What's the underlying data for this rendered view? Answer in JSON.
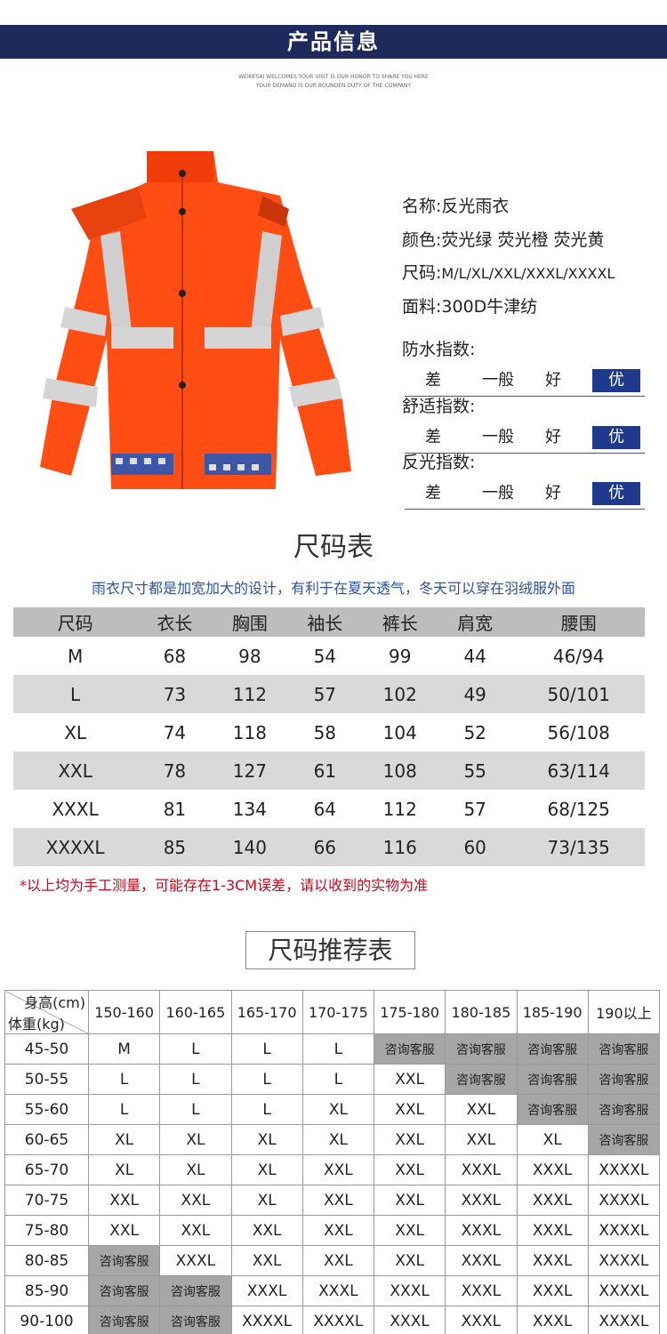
{
  "header": {
    "title": "产品信息",
    "subtitle": [
      "WEIKESAI WELCOMES YOUR VISIT IS OUR HONOR TO SHARE YOU HERE",
      "YOUR DEMAND IS OUR BOUNDEN DUTY OF THE COMPANY"
    ]
  },
  "product": {
    "specs": [
      {
        "label": "名称:",
        "value": "反光雨衣"
      },
      {
        "label": "颜色:",
        "value": "荧光绿 荧光橙 荧光黄"
      },
      {
        "label": "尺码:",
        "value": "M/L/XL/XXL/XXXL/XXXXL"
      },
      {
        "label": "面料:",
        "value": "300D牛津纺"
      }
    ],
    "ratings": [
      {
        "label": "防水指数:",
        "levels": [
          "差",
          "一般",
          "好",
          "优"
        ],
        "selected": 3
      },
      {
        "label": "舒适指数:",
        "levels": [
          "差",
          "一般",
          "好",
          "优"
        ],
        "selected": 3
      },
      {
        "label": "反光指数:",
        "levels": [
          "差",
          "一般",
          "好",
          "优"
        ],
        "selected": 3
      }
    ]
  },
  "size_table": {
    "title": "尺码表",
    "note": "雨衣尺寸都是加宽加大的设计，有利于在夏天透气，冬天可以穿在羽绒服外面",
    "header": [
      "尺码",
      "衣长",
      "胸围",
      "袖长",
      "裤长",
      "肩宽",
      "腰围"
    ],
    "rows": [
      [
        "M",
        68,
        98,
        54,
        99,
        44,
        "46/94"
      ],
      [
        "L",
        73,
        112,
        57,
        102,
        49,
        "50/101"
      ],
      [
        "XL",
        74,
        118,
        58,
        104,
        52,
        "56/108"
      ],
      [
        "XXL",
        78,
        127,
        61,
        108,
        55,
        "63/114"
      ],
      [
        "XXXL",
        81,
        134,
        64,
        112,
        57,
        "68/125"
      ],
      [
        "XXXXL",
        85,
        140,
        66,
        116,
        60,
        "73/135"
      ]
    ],
    "footnote": "*以上均为手工测量，可能存在1-3CM误差，请以收到的实物为准"
  },
  "recommend_table": {
    "title": "尺码推荐表",
    "corner_top": "身高(cm)",
    "corner_bottom": "体重(kg)",
    "columns": [
      "150-160",
      "160-165",
      "165-170",
      "170-175",
      "175-180",
      "180-185",
      "185-190",
      "190以上"
    ],
    "rows": [
      {
        "weight": "45-50",
        "cells": [
          "M",
          "L",
          "L",
          "L",
          "咨询客服",
          "咨询客服",
          "咨询客服",
          "咨询客服"
        ]
      },
      {
        "weight": "50-55",
        "cells": [
          "L",
          "L",
          "L",
          "L",
          "XXL",
          "咨询客服",
          "咨询客服",
          "咨询客服"
        ]
      },
      {
        "weight": "55-60",
        "cells": [
          "L",
          "L",
          "L",
          "XL",
          "XXL",
          "XXL",
          "咨询客服",
          "咨询客服"
        ]
      },
      {
        "weight": "60-65",
        "cells": [
          "XL",
          "XL",
          "XL",
          "XL",
          "XXL",
          "XXL",
          "XL",
          "咨询客服"
        ]
      },
      {
        "weight": "65-70",
        "cells": [
          "XL",
          "XL",
          "XL",
          "XXL",
          "XXL",
          "XXXL",
          "XXXL",
          "XXXXL"
        ]
      },
      {
        "weight": "70-75",
        "cells": [
          "XXL",
          "XXL",
          "XL",
          "XXL",
          "XXL",
          "XXXL",
          "XXXL",
          "XXXXL"
        ]
      },
      {
        "weight": "75-80",
        "cells": [
          "XXL",
          "XXL",
          "XXL",
          "XXL",
          "XXL",
          "XXXL",
          "XXXL",
          "XXXXL"
        ]
      },
      {
        "weight": "80-85",
        "cells": [
          "咨询客服",
          "XXXL",
          "XXL",
          "XXL",
          "XXL",
          "XXXL",
          "XXXL",
          "XXXXL"
        ]
      },
      {
        "weight": "85-90",
        "cells": [
          "咨询客服",
          "咨询客服",
          "XXXL",
          "XXXL",
          "XXXL",
          "XXXL",
          "XXXL",
          "XXXXL"
        ]
      },
      {
        "weight": "90-100",
        "cells": [
          "咨询客服",
          "咨询客服",
          "XXXXL",
          "XXXXL",
          "XXXL",
          "XXXL",
          "XXXL",
          "XXXXL"
        ]
      }
    ]
  }
}
